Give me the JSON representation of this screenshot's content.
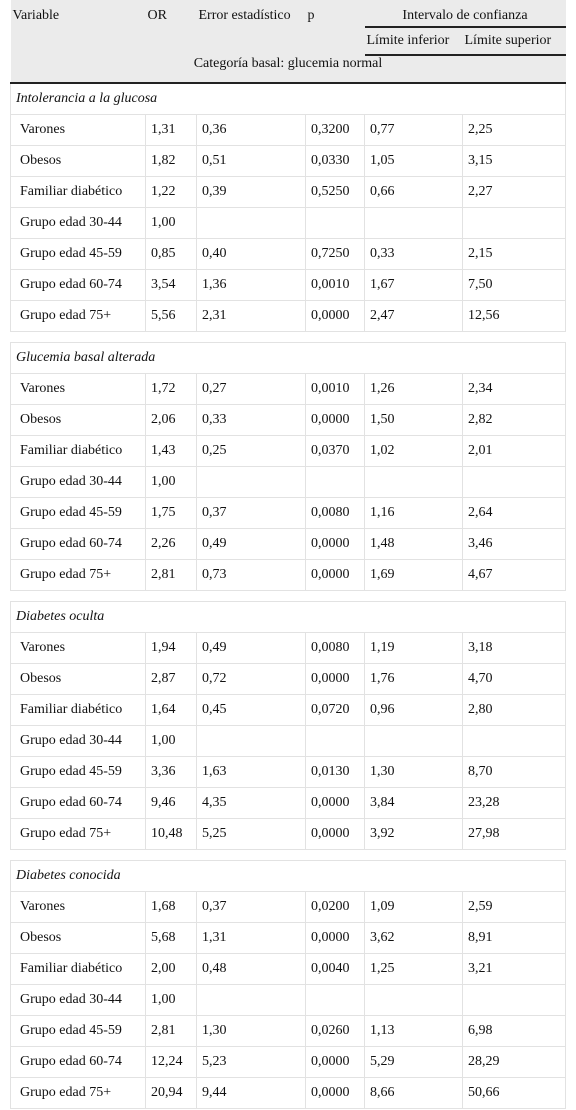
{
  "header": {
    "columns": [
      "Variable",
      "OR",
      "Error estadístico",
      "p"
    ],
    "group": "Intervalo de confianza",
    "subcolumns": [
      "Límite inferior",
      "Límite superior"
    ],
    "baseline": "Categoría basal: glucemia normal"
  },
  "sections": [
    {
      "title": "Intolerancia a la glucosa",
      "rows": [
        [
          "Varones",
          "1,31",
          "0,36",
          "0,3200",
          "0,77",
          "2,25"
        ],
        [
          "Obesos",
          "1,82",
          "0,51",
          "0,0330",
          "1,05",
          "3,15"
        ],
        [
          "Familiar diabético",
          "1,22",
          "0,39",
          "0,5250",
          "0,66",
          "2,27"
        ],
        [
          "Grupo edad 30-44",
          "1,00"
        ],
        [
          "Grupo edad 45-59",
          "0,85",
          "0,40",
          "0,7250",
          "0,33",
          "2,15"
        ],
        [
          "Grupo edad 60-74",
          "3,54",
          "1,36",
          "0,0010",
          "1,67",
          "7,50"
        ],
        [
          "Grupo edad 75+",
          "5,56",
          "2,31",
          "0,0000",
          "2,47",
          "12,56"
        ]
      ]
    },
    {
      "title": "Glucemia basal alterada",
      "rows": [
        [
          "Varones",
          "1,72",
          "0,27",
          "0,0010",
          "1,26",
          "2,34"
        ],
        [
          "Obesos",
          "2,06",
          "0,33",
          "0,0000",
          "1,50",
          "2,82"
        ],
        [
          "Familiar diabético",
          "1,43",
          "0,25",
          "0,0370",
          "1,02",
          "2,01"
        ],
        [
          "Grupo edad 30-44",
          "1,00"
        ],
        [
          "Grupo edad 45-59",
          "1,75",
          "0,37",
          "0,0080",
          "1,16",
          "2,64"
        ],
        [
          "Grupo edad 60-74",
          "2,26",
          "0,49",
          "0,0000",
          "1,48",
          "3,46"
        ],
        [
          "Grupo edad 75+",
          "2,81",
          "0,73",
          "0,0000",
          "1,69",
          "4,67"
        ]
      ]
    },
    {
      "title": "Diabetes oculta",
      "rows": [
        [
          "Varones",
          "1,94",
          "0,49",
          "0,0080",
          "1,19",
          "3,18"
        ],
        [
          "Obesos",
          "2,87",
          "0,72",
          "0,0000",
          "1,76",
          "4,70"
        ],
        [
          "Familiar diabético",
          "1,64",
          "0,45",
          "0,0720",
          "0,96",
          "2,80"
        ],
        [
          "Grupo edad 30-44",
          "1,00"
        ],
        [
          "Grupo edad 45-59",
          "3,36",
          "1,63",
          "0,0130",
          "1,30",
          "8,70"
        ],
        [
          "Grupo edad 60-74",
          "9,46",
          "4,35",
          "0,0000",
          "3,84",
          "23,28"
        ],
        [
          "Grupo edad 75+",
          "10,48",
          "5,25",
          "0,0000",
          "3,92",
          "27,98"
        ]
      ]
    },
    {
      "title": "Diabetes conocida",
      "rows": [
        [
          "Varones",
          "1,68",
          "0,37",
          "0,0200",
          "1,09",
          "2,59"
        ],
        [
          "Obesos",
          "5,68",
          "1,31",
          "0,0000",
          "3,62",
          "8,91"
        ],
        [
          "Familiar diabético",
          "2,00",
          "0,48",
          "0,0040",
          "1,25",
          "3,21"
        ],
        [
          "Grupo edad 30-44",
          "1,00"
        ],
        [
          "Grupo edad 45-59",
          "2,81",
          "1,30",
          "0,0260",
          "1,13",
          "6,98"
        ],
        [
          "Grupo edad 60-74",
          "12,24",
          "5,23",
          "0,0000",
          "5,29",
          "28,29"
        ],
        [
          "Grupo edad 75+",
          "20,94",
          "9,44",
          "0,0000",
          "8,66",
          "50,66"
        ]
      ]
    }
  ]
}
